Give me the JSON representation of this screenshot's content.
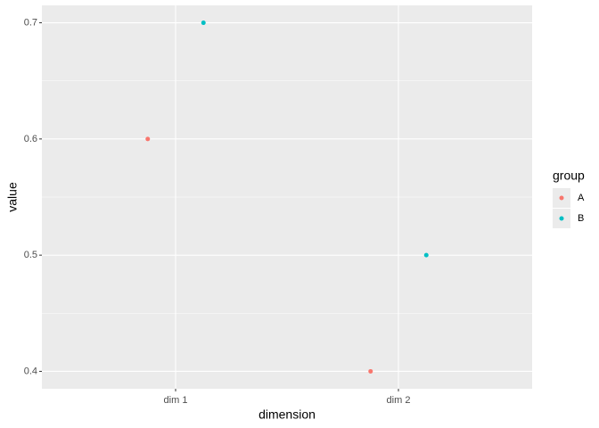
{
  "chart_data": {
    "type": "scatter",
    "x_label": "dimension",
    "y_label": "value",
    "categories": [
      "dim 1",
      "dim 2"
    ],
    "series": [
      {
        "name": "A",
        "color": "#F8766D",
        "values": [
          0.6,
          0.4
        ]
      },
      {
        "name": "B",
        "color": "#00BFC4",
        "values": [
          0.7,
          0.5
        ]
      }
    ],
    "ylim": [
      0.385,
      0.715
    ],
    "yticks": [
      0.4,
      0.5,
      0.6,
      0.7
    ],
    "grid": true,
    "legend_title": "group",
    "legend_position": "right"
  }
}
